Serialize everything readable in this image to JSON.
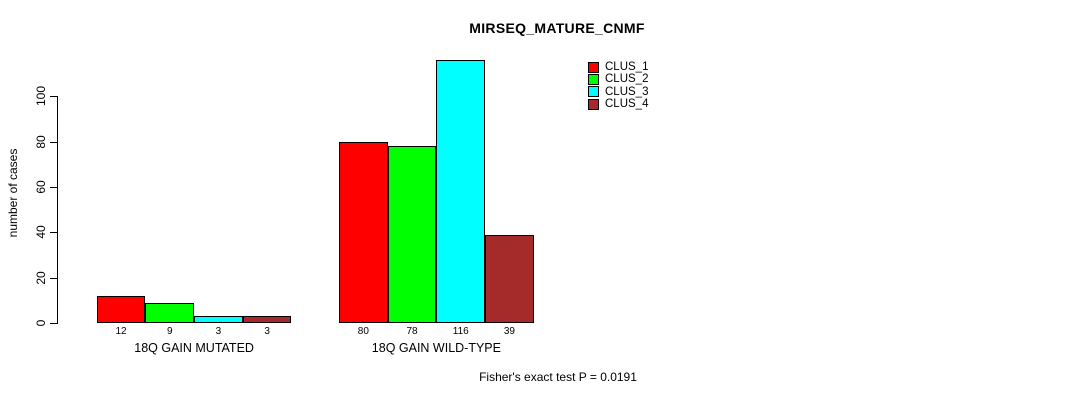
{
  "title": "MIRSEQ_MATURE_CNMF",
  "ylabel": "number of cases",
  "footer": "Fisher's exact test P = 0.0191",
  "colors": {
    "clus_1": "#FF0000",
    "clus_2": "#00FF00",
    "clus_3": "#00FFFF",
    "clus_4": "#A52A2A",
    "axis": "#000000",
    "background": "#FFFFFF"
  },
  "legend": {
    "position": "top-right",
    "entries": [
      {
        "label": "CLUS_1",
        "color": "#FF0000"
      },
      {
        "label": "CLUS_2",
        "color": "#00FF00"
      },
      {
        "label": "CLUS_3",
        "color": "#00FFFF"
      },
      {
        "label": "CLUS_4",
        "color": "#A52A2A"
      }
    ]
  },
  "chart_data": {
    "type": "bar",
    "grouped": true,
    "title": "MIRSEQ_MATURE_CNMF",
    "xlabel": "",
    "ylabel": "number of cases",
    "categories": [
      "18Q GAIN MUTATED",
      "18Q GAIN WILD-TYPE"
    ],
    "series": [
      {
        "name": "CLUS_1",
        "color": "#FF0000",
        "values": [
          12,
          80
        ]
      },
      {
        "name": "CLUS_2",
        "color": "#00FF00",
        "values": [
          9,
          78
        ]
      },
      {
        "name": "CLUS_3",
        "color": "#00FFFF",
        "values": [
          3,
          116
        ]
      },
      {
        "name": "CLUS_4",
        "color": "#A52A2A",
        "values": [
          3,
          39
        ]
      }
    ],
    "bar_value_labels": [
      [
        12,
        9,
        3,
        3
      ],
      [
        80,
        78,
        116,
        39
      ]
    ],
    "yticks": [
      0,
      20,
      40,
      60,
      80,
      100
    ],
    "ylim": [
      0,
      116
    ],
    "grid": false,
    "legend_position": "top-right",
    "annotation": "Fisher's exact test P = 0.0191"
  }
}
